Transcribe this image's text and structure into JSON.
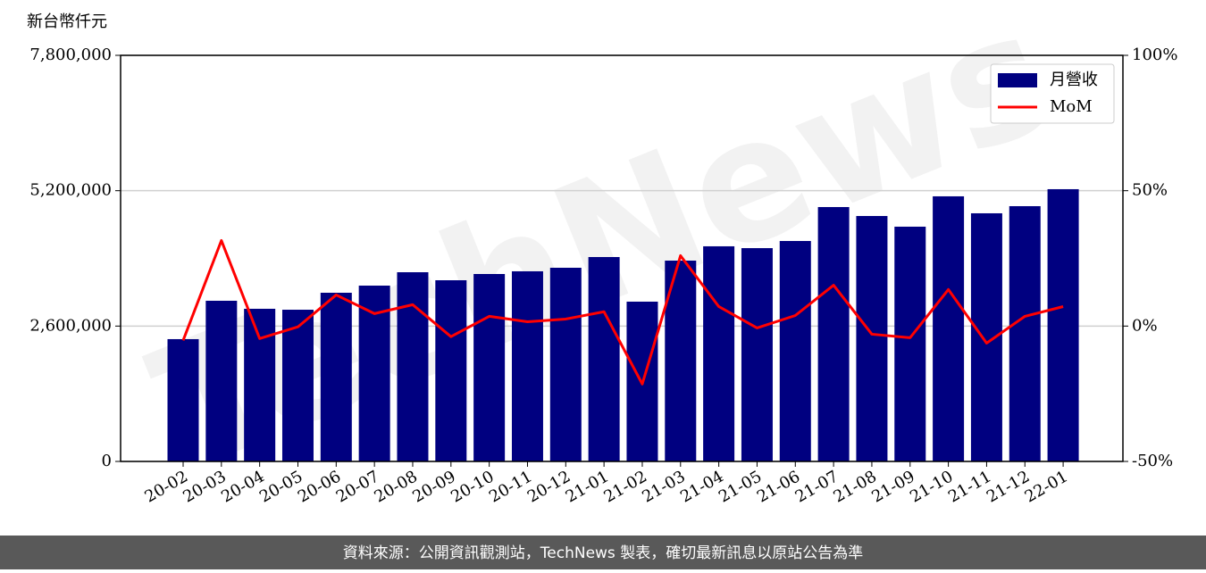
{
  "chart_data": {
    "type": "bar",
    "ylabel": "新台幣仟元",
    "watermark": "TechNews",
    "source": "資料來源：公開資訊觀測站，TechNews 製表，確切最新訊息以原站公告為準",
    "categories": [
      "20-02",
      "20-03",
      "20-04",
      "20-05",
      "20-06",
      "20-07",
      "20-08",
      "20-09",
      "20-10",
      "20-11",
      "20-12",
      "21-01",
      "21-02",
      "21-03",
      "21-04",
      "21-05",
      "21-06",
      "21-07",
      "21-08",
      "21-09",
      "21-10",
      "21-11",
      "21-12",
      "22-01"
    ],
    "series": [
      {
        "name": "月營收",
        "type": "bar",
        "color": "#000080",
        "values": [
          2349000,
          3086000,
          2932000,
          2914000,
          3240000,
          3377000,
          3634000,
          3480000,
          3600000,
          3652000,
          3720000,
          3926000,
          3069000,
          3857000,
          4132000,
          4097000,
          4234000,
          4886000,
          4714000,
          4509000,
          5092000,
          4766000,
          4903000,
          5229000
        ]
      },
      {
        "name": "MoM",
        "type": "line",
        "axis": "y2",
        "color": "#ff0000",
        "values": [
          -5.3,
          31.6,
          -4.6,
          -0.3,
          11.5,
          4.6,
          7.9,
          -3.9,
          3.6,
          1.6,
          2.6,
          5.3,
          -21.4,
          26.0,
          7.2,
          -0.7,
          3.9,
          15.1,
          -3.0,
          -4.3,
          13.5,
          -6.3,
          3.6,
          7.2
        ]
      }
    ],
    "ylim": [
      0,
      7800000
    ],
    "yticks": [
      0,
      {
        "value": 2600000,
        "label": "2,600,000"
      },
      {
        "value": 5200000,
        "label": "5,200,000"
      },
      {
        "value": 7800000,
        "label": "7,800,000"
      }
    ],
    "y2lim": [
      -50,
      100
    ],
    "y2ticks": [
      {
        "value": -50,
        "label": "-50%"
      },
      {
        "value": 0,
        "label": "0%"
      },
      {
        "value": 50,
        "label": "50%"
      },
      {
        "value": 100,
        "label": "100%"
      }
    ],
    "grid": true,
    "legend": "upper right"
  }
}
